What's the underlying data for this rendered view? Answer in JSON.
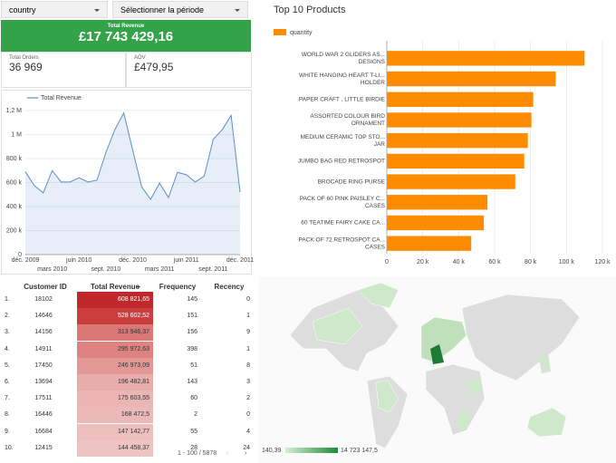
{
  "controls": {
    "country": "country",
    "period": "Sélectionner la période"
  },
  "scorecards": {
    "revenue_label": "Total Revenue",
    "revenue": "£17 743 429,16",
    "orders_label": "Total Orders",
    "orders": "36 969",
    "aov_label": "AOV",
    "aov": "£479,95"
  },
  "chart_data": [
    {
      "type": "line",
      "categories": [
        "déc. 2009",
        null,
        null,
        "mars 2010",
        null,
        null,
        "juin 2010",
        null,
        null,
        "sept. 2010",
        null,
        null,
        "déc. 2010",
        null,
        null,
        "mars 2011",
        null,
        null,
        "juin 2011",
        null,
        null,
        "sept. 2011",
        null,
        null,
        "déc. 2011"
      ],
      "series": [
        {
          "name": "Total Revenue",
          "color": "#5b8fc9",
          "values": [
            690000,
            575000,
            515000,
            700000,
            605000,
            605000,
            640000,
            605000,
            620000,
            850000,
            1040000,
            1180000,
            870000,
            565000,
            460000,
            595000,
            475000,
            685000,
            665000,
            605000,
            655000,
            960000,
            1040000,
            1160000,
            520000
          ]
        }
      ],
      "ylim": [
        0,
        1200000
      ],
      "yticks": [
        0,
        {
          "value": 200000,
          "label": "200 k"
        },
        {
          "value": 400000,
          "label": "400 k"
        },
        {
          "value": 600000,
          "label": "600 k"
        },
        {
          "value": 800000,
          "label": "800 k"
        },
        {
          "value": 1000000,
          "label": "1 M"
        },
        {
          "value": 1200000,
          "label": "1,2 M"
        }
      ],
      "grid": true,
      "legend": "top"
    },
    {
      "type": "hbar",
      "title": "Top 10 Products",
      "categories": [
        [
          "WORLD WAR 2 GLIDERS AS...",
          "DESIGNS"
        ],
        [
          "WHITE HANGING HEART T-LI...",
          "HOLDER"
        ],
        [
          "PAPER CRAFT , LITTLE BIRDIE"
        ],
        [
          "ASSORTED COLOUR BIRD",
          "ORNAMENT"
        ],
        [
          "MEDIUM CERAMIC TOP STO...",
          "JAR"
        ],
        [
          "JUMBO BAG RED RETROSPOT"
        ],
        [
          "BROCADE RING PURSE"
        ],
        [
          "PACK OF 60 PINK PAISLEY C...",
          "CASES"
        ],
        [
          "60 TEATIME FAIRY CAKE CA..."
        ],
        [
          "PACK OF 72 RETROSPOT CA...",
          "CASES"
        ]
      ],
      "series": [
        {
          "name": "quantity",
          "color": "#ff8c00",
          "values": [
            110000,
            94000,
            81500,
            80500,
            78500,
            76500,
            71500,
            56000,
            54000,
            47000
          ]
        }
      ],
      "xlim": [
        0,
        120000
      ],
      "xticks": [
        0,
        {
          "value": 20000,
          "label": "20 k"
        },
        {
          "value": 40000,
          "label": "40 k"
        },
        {
          "value": 60000,
          "label": "60 k"
        },
        {
          "value": 80000,
          "label": "80 k"
        },
        {
          "value": 100000,
          "label": "100 k"
        },
        {
          "value": 120000,
          "label": "120 k"
        }
      ],
      "grid": true,
      "legend": "top-left"
    }
  ],
  "table": {
    "columns": [
      "Customer ID",
      "Total Revenue",
      "Frequency",
      "Recency"
    ],
    "rows": [
      [
        "18102",
        "608 821,65",
        "145",
        "0"
      ],
      [
        "14646",
        "528 602,52",
        "151",
        "1"
      ],
      [
        "14156",
        "313 946,37",
        "156",
        "9"
      ],
      [
        "14911",
        "295 972,63",
        "398",
        "1"
      ],
      [
        "17450",
        "246 973,09",
        "51",
        "8"
      ],
      [
        "13694",
        "196 482,81",
        "143",
        "3"
      ],
      [
        "17511",
        "175 603,55",
        "60",
        "2"
      ],
      [
        "16446",
        "168 472,5",
        "2",
        "0"
      ],
      [
        "16684",
        "147 142,77",
        "55",
        "4"
      ],
      [
        "12415",
        "144 458,37",
        "28",
        "24"
      ]
    ],
    "row_numbers": [
      "1.",
      "2.",
      "3.",
      "4.",
      "5.",
      "6.",
      "7.",
      "8.",
      "9.",
      "10."
    ],
    "revenue_colors": [
      "#c0282b",
      "#cc3d3e",
      "#db7876",
      "#de8381",
      "#e39896",
      "#e8adab",
      "#eab5b3",
      "#ebb9b7",
      "#edc0be",
      "#eec4c2"
    ],
    "pagination": "1 - 100 / 5878"
  },
  "map": {
    "legend_min": "140,39",
    "legend_max": "14 723 147,5"
  }
}
